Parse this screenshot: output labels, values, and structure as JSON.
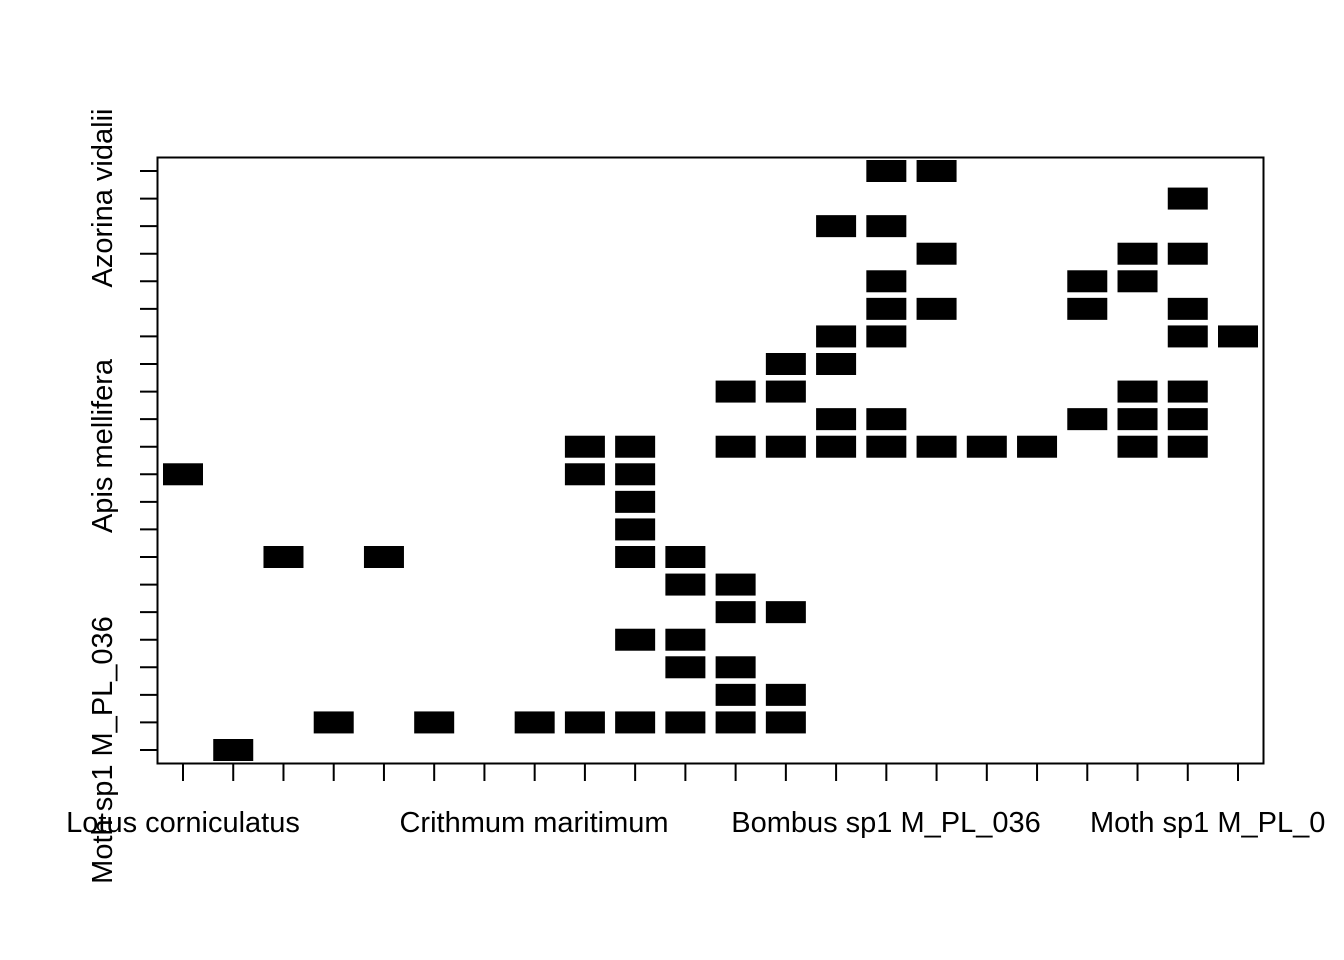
{
  "chart_data": {
    "type": "heatmap",
    "x_tick_labels": [
      "Lotus corniculatus",
      "Crithmum maritimum",
      "Bombus sp1 M_PL_036",
      "Moth sp1 M_PL_0"
    ],
    "y_tick_labels": [
      "Moth sp1 M_PL_036",
      "Apis mellifera",
      "Azorina vidalii"
    ],
    "n_columns": 22,
    "n_rows": 22,
    "cell_color": "#000000",
    "background_color": "#ffffff",
    "cells": [
      [
        1,
        2
      ],
      [
        2,
        4
      ],
      [
        2,
        6
      ],
      [
        2,
        8
      ],
      [
        2,
        9
      ],
      [
        2,
        10
      ],
      [
        2,
        11
      ],
      [
        2,
        12
      ],
      [
        2,
        13
      ],
      [
        3,
        12
      ],
      [
        3,
        13
      ],
      [
        4,
        11
      ],
      [
        4,
        12
      ],
      [
        5,
        10
      ],
      [
        5,
        11
      ],
      [
        6,
        12
      ],
      [
        6,
        13
      ],
      [
        7,
        11
      ],
      [
        7,
        12
      ],
      [
        8,
        3
      ],
      [
        8,
        5
      ],
      [
        8,
        10
      ],
      [
        8,
        11
      ],
      [
        9,
        10
      ],
      [
        10,
        10
      ],
      [
        11,
        1
      ],
      [
        11,
        9
      ],
      [
        11,
        10
      ],
      [
        12,
        9
      ],
      [
        12,
        10
      ],
      [
        12,
        12
      ],
      [
        12,
        13
      ],
      [
        12,
        14
      ],
      [
        12,
        15
      ],
      [
        12,
        16
      ],
      [
        12,
        17
      ],
      [
        12,
        18
      ],
      [
        12,
        20
      ],
      [
        12,
        21
      ],
      [
        13,
        14
      ],
      [
        13,
        15
      ],
      [
        13,
        19
      ],
      [
        13,
        20
      ],
      [
        13,
        21
      ],
      [
        14,
        12
      ],
      [
        14,
        13
      ],
      [
        14,
        20
      ],
      [
        14,
        21
      ],
      [
        15,
        13
      ],
      [
        15,
        14
      ],
      [
        16,
        14
      ],
      [
        16,
        15
      ],
      [
        16,
        21
      ],
      [
        16,
        22
      ],
      [
        17,
        19
      ],
      [
        17,
        15
      ],
      [
        17,
        16
      ],
      [
        18,
        15
      ],
      [
        18,
        20
      ],
      [
        19,
        16
      ],
      [
        19,
        20
      ],
      [
        19,
        21
      ],
      [
        20,
        14
      ],
      [
        20,
        15
      ],
      [
        21,
        21
      ],
      [
        22,
        15
      ],
      [
        22,
        16
      ],
      [
        17,
        21
      ],
      [
        18,
        19
      ]
    ]
  }
}
